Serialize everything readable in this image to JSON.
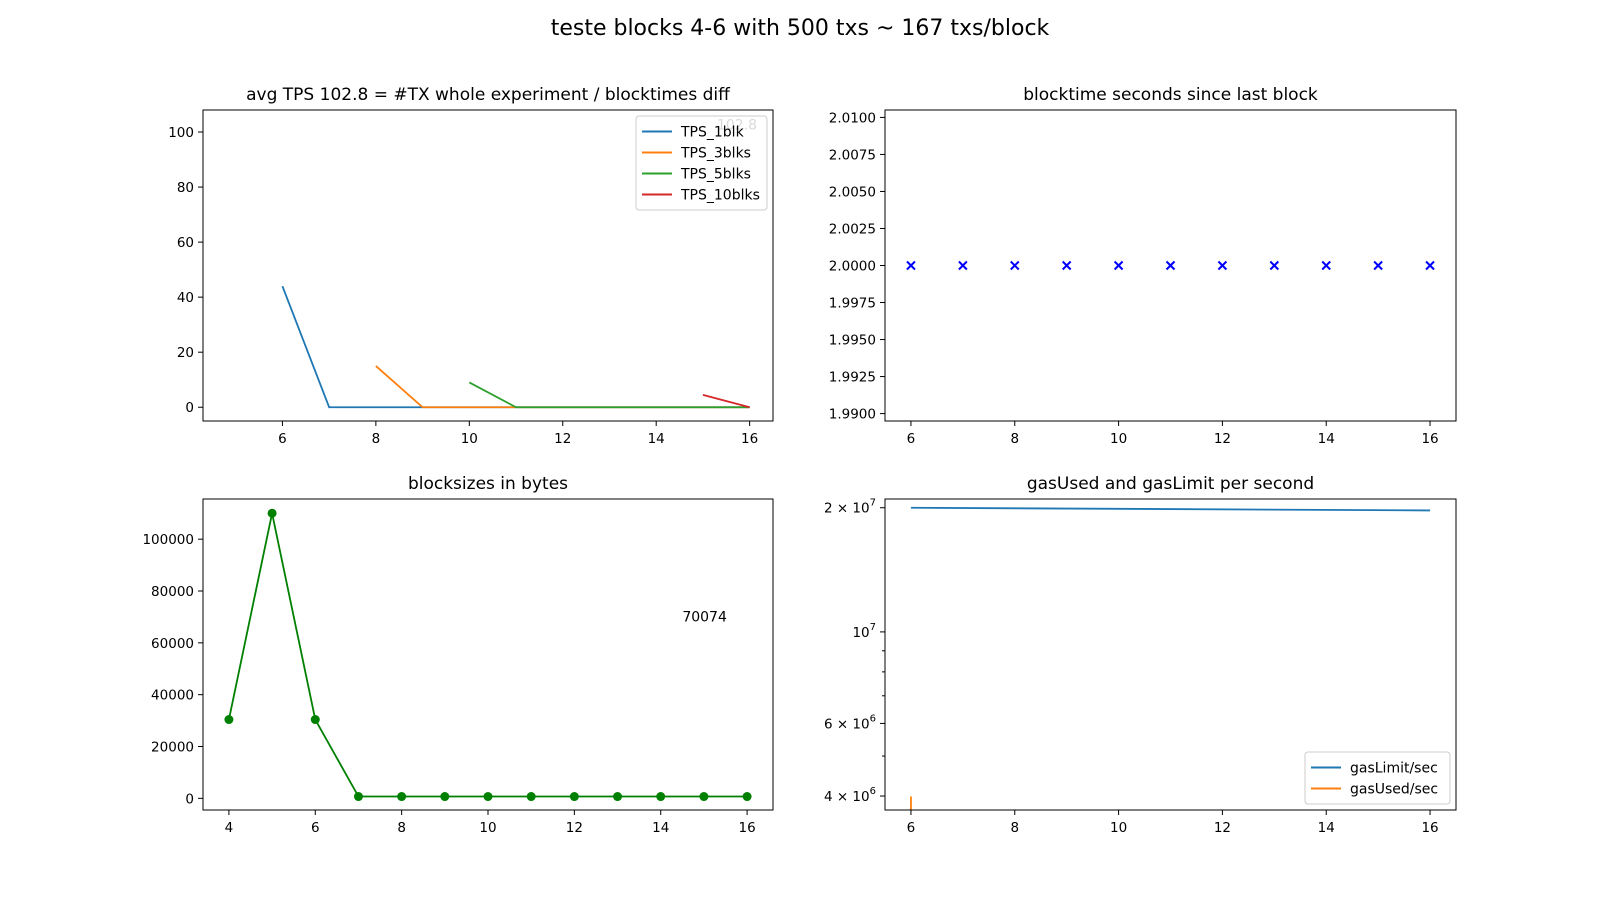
{
  "suptitle": "teste blocks 4-6 with 500 txs ~ 167 txs/block",
  "chart_data": [
    {
      "type": "line",
      "title": "avg TPS 102.8 = #TX whole experiment / blocktimes diff",
      "xlim": [
        4.3,
        16.5
      ],
      "ylim": [
        -5,
        108
      ],
      "xticks": [
        6,
        8,
        10,
        12,
        14,
        16
      ],
      "yticks": [
        0,
        20,
        40,
        60,
        80,
        100
      ],
      "yscale": "linear",
      "annotations": [
        {
          "text": "102.8",
          "x": 15.3,
          "y": 102.8
        }
      ],
      "legend": {
        "position": "top-right"
      },
      "series": [
        {
          "name": "TPS_1blk",
          "color": "#1f77b4",
          "x": [
            6,
            7,
            8,
            9,
            10,
            11,
            12,
            13,
            14,
            15,
            16
          ],
          "y": [
            44.0,
            0,
            0,
            0,
            0,
            0,
            0,
            0,
            0,
            0,
            0
          ]
        },
        {
          "name": "TPS_3blks",
          "color": "#ff7f0e",
          "x": [
            8,
            9,
            10,
            11,
            12,
            13,
            14,
            15,
            16
          ],
          "y": [
            15.0,
            0,
            0,
            0,
            0,
            0,
            0,
            0,
            0
          ]
        },
        {
          "name": "TPS_5blks",
          "color": "#2ca02c",
          "x": [
            10,
            11,
            12,
            13,
            14,
            15,
            16
          ],
          "y": [
            9.0,
            0,
            0,
            0,
            0,
            0,
            0
          ]
        },
        {
          "name": "TPS_10blks",
          "color": "#d62728",
          "x": [
            15,
            16
          ],
          "y": [
            4.5,
            0
          ]
        }
      ]
    },
    {
      "type": "scatter",
      "title": "blocktime seconds since last block",
      "xlim": [
        5.5,
        16.5
      ],
      "ylim": [
        1.9895,
        2.0105
      ],
      "xticks": [
        6,
        8,
        10,
        12,
        14,
        16
      ],
      "yticks": [
        1.99,
        1.9925,
        1.995,
        1.9975,
        2.0,
        2.0025,
        2.005,
        2.0075,
        2.01
      ],
      "ytick_labels": [
        "1.9900",
        "1.9925",
        "1.9950",
        "1.9975",
        "2.0000",
        "2.0025",
        "2.0050",
        "2.0075",
        "2.0100"
      ],
      "yscale": "linear",
      "series": [
        {
          "marker": "x",
          "color": "#0000ff",
          "x": [
            6,
            7,
            8,
            9,
            10,
            11,
            12,
            13,
            14,
            15,
            16
          ],
          "y": [
            2.0,
            2.0,
            2.0,
            2.0,
            2.0,
            2.0,
            2.0,
            2.0,
            2.0,
            2.0,
            2.0
          ]
        }
      ]
    },
    {
      "type": "line",
      "title": "blocksizes in bytes",
      "xlim": [
        3.4,
        16.6
      ],
      "ylim": [
        -4500,
        115500
      ],
      "xticks": [
        4,
        6,
        8,
        10,
        12,
        14,
        16
      ],
      "yticks": [
        0,
        20000,
        40000,
        60000,
        80000,
        100000
      ],
      "yscale": "linear",
      "annotations": [
        {
          "text": "70074",
          "x": 14.5,
          "y": 70074
        }
      ],
      "series": [
        {
          "marker": "o",
          "color": "#008000",
          "x": [
            4,
            5,
            6,
            7,
            8,
            9,
            10,
            11,
            12,
            13,
            14,
            15,
            16
          ],
          "y": [
            30400,
            110000,
            30400,
            700,
            700,
            700,
            700,
            700,
            700,
            700,
            700,
            700,
            700
          ]
        }
      ]
    },
    {
      "type": "line",
      "title": "gasUsed and gasLimit per second",
      "xlim": [
        5.5,
        16.5
      ],
      "ylim": [
        3700000,
        21000000
      ],
      "xticks": [
        6,
        8,
        10,
        12,
        14,
        16
      ],
      "yscale": "log",
      "yticks_major": [
        {
          "value": 4000000,
          "base": "4 × 10",
          "exp": "6"
        },
        {
          "value": 6000000,
          "base": "6 × 10",
          "exp": "6"
        },
        {
          "value": 10000000,
          "base": "10",
          "exp": "7"
        },
        {
          "value": 20000000,
          "base": "2 × 10",
          "exp": "7"
        }
      ],
      "yticks_minor": [
        3000000,
        5000000,
        7000000,
        8000000,
        9000000
      ],
      "legend": {
        "position": "bottom-right"
      },
      "series": [
        {
          "name": "gasLimit/sec",
          "color": "#1f77b4",
          "x": [
            6,
            16
          ],
          "y": [
            20000000,
            19700000
          ]
        },
        {
          "name": "gasUsed/sec",
          "color": "#ff7f0e",
          "x": [
            6,
            6
          ],
          "y": [
            3990000,
            3600000
          ]
        }
      ]
    }
  ]
}
